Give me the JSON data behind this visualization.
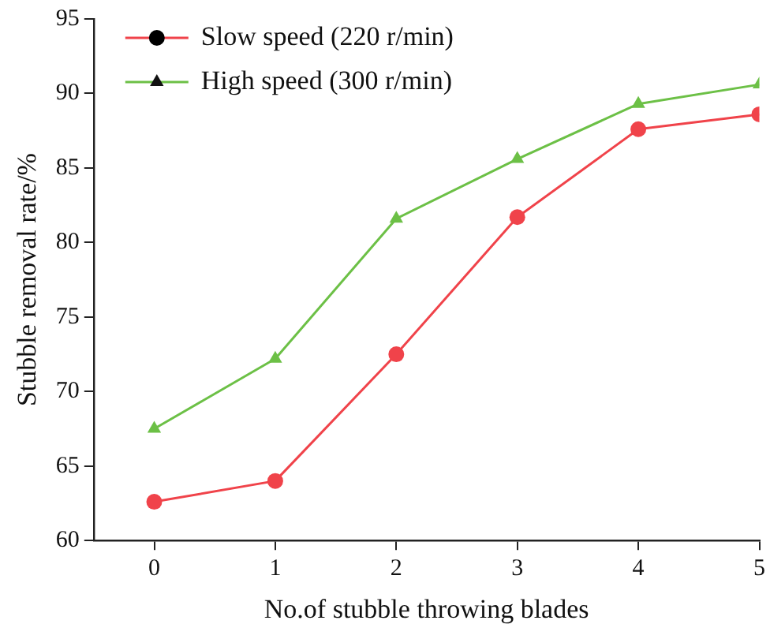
{
  "chart_data": {
    "type": "line",
    "xlabel": "No.of stubble throwing blades",
    "ylabel": "Stubble removal rate/%",
    "x": [
      0,
      1,
      2,
      3,
      4,
      5
    ],
    "series": [
      {
        "name": "Slow speed (220 r/min)",
        "color": "#f0434a",
        "marker": "circle",
        "values": [
          62.6,
          64.0,
          72.5,
          81.7,
          87.6,
          88.6
        ]
      },
      {
        "name": "High speed (300 r/min)",
        "color": "#6cc046",
        "marker": "triangle",
        "values": [
          67.5,
          72.2,
          81.6,
          85.6,
          89.3,
          90.6
        ]
      }
    ],
    "xlim": [
      -0.5,
      5
    ],
    "xticks": [
      0,
      1,
      2,
      3,
      4,
      5
    ],
    "ylim": [
      60,
      95
    ],
    "yticks": [
      60,
      65,
      70,
      75,
      80,
      85,
      90,
      95
    ],
    "grid": false,
    "legend": "top left",
    "line_style": "solid"
  }
}
